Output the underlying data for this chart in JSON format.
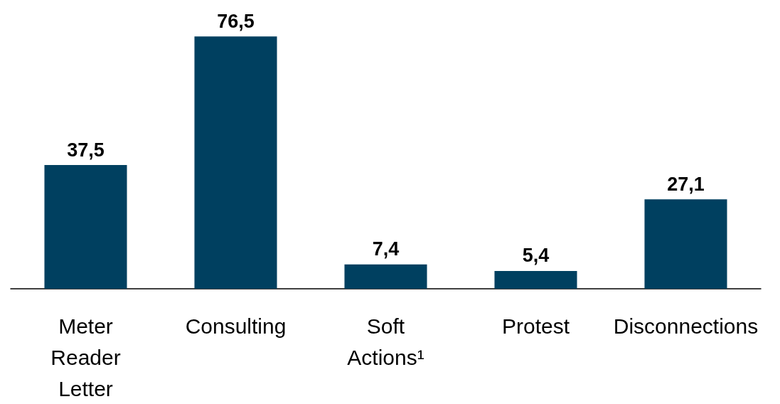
{
  "chart_data": {
    "type": "bar",
    "categories": [
      "Meter Reader Letter",
      "Consulting",
      "Soft Actions¹",
      "Protest",
      "Disconnections"
    ],
    "values": [
      37.5,
      76.5,
      7.4,
      5.4,
      27.1
    ],
    "value_labels": [
      "37,5",
      "76,5",
      "7,4",
      "5,4",
      "27,1"
    ],
    "color": "#004060"
  }
}
